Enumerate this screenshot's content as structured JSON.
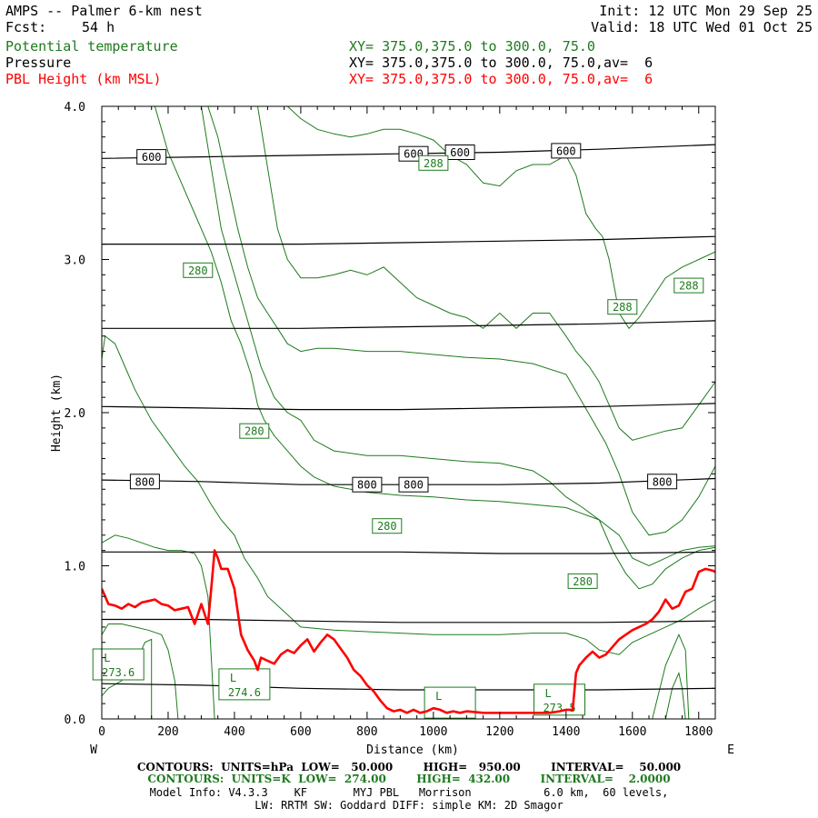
{
  "header": {
    "title": "AMPS -- Palmer 6-km nest",
    "forecast_label": "Fcst:",
    "forecast_hours": "54 h",
    "init": "Init: 12 UTC Mon 29 Sep 25",
    "valid": "Valid: 18 UTC Wed 01 Oct 25"
  },
  "fields": [
    {
      "name": "Potential temperature",
      "xy": "XY= 375.0,375.0 to 300.0, 75.0",
      "color": "#1e7a1e"
    },
    {
      "name": "Pressure",
      "xy": "XY= 375.0,375.0 to 300.0, 75.0,av=  6",
      "color": "#000000"
    },
    {
      "name": "PBL Height (km MSL)",
      "xy": "XY= 375.0,375.0 to 300.0, 75.0,av=  6",
      "color": "#ff0000"
    }
  ],
  "footer": {
    "pressure_contours": "CONTOURS:  UNITS=hPa  LOW=   50.000        HIGH=   950.00        INTERVAL=    50.000",
    "theta_contours": "CONTOURS:  UNITS=K  LOW=  274.00        HIGH=  432.00        INTERVAL=    2.0000",
    "model_info_1": "Model Info: V4.3.3    KF       MYJ PBL   Morrison           6.0 km,  60 levels,",
    "model_info_2": "LW: RRTM SW: Goddard DIFF: simple KM: 2D Smagor"
  },
  "chart_data": {
    "type": "line",
    "xlabel": "Distance (km)",
    "ylabel": "Height (km)",
    "xlim": [
      0,
      1850
    ],
    "ylim": [
      0,
      4
    ],
    "x_ticks": [
      "0",
      "200",
      "400",
      "600",
      "800",
      "1000",
      "1200",
      "1400",
      "1600",
      "1800"
    ],
    "y_ticks": [
      "0.0",
      "1.0",
      "2.0",
      "3.0",
      "4.0"
    ],
    "x_tick_values": [
      0,
      200,
      400,
      600,
      800,
      1000,
      1200,
      1400,
      1600,
      1800
    ],
    "y_tick_values": [
      0,
      1,
      2,
      3,
      4
    ],
    "left_end_label": "W",
    "right_end_label": "E",
    "pbl_height": {
      "name": "PBL Height (km MSL)",
      "color": "#ff0000",
      "x": [
        0,
        20,
        40,
        60,
        80,
        100,
        120,
        140,
        160,
        180,
        200,
        220,
        240,
        260,
        280,
        300,
        320,
        330,
        340,
        350,
        360,
        380,
        400,
        420,
        440,
        460,
        470,
        480,
        500,
        520,
        540,
        560,
        580,
        600,
        620,
        640,
        660,
        680,
        700,
        720,
        740,
        760,
        780,
        800,
        820,
        840,
        860,
        880,
        900,
        920,
        940,
        960,
        980,
        1000,
        1020,
        1040,
        1060,
        1080,
        1100,
        1150,
        1200,
        1250,
        1300,
        1350,
        1380,
        1400,
        1420,
        1430,
        1440,
        1460,
        1480,
        1500,
        1520,
        1540,
        1560,
        1580,
        1600,
        1620,
        1640,
        1660,
        1680,
        1700,
        1720,
        1740,
        1760,
        1780,
        1800,
        1820,
        1840,
        1850
      ],
      "y": [
        0.85,
        0.75,
        0.74,
        0.72,
        0.75,
        0.73,
        0.76,
        0.77,
        0.78,
        0.75,
        0.74,
        0.71,
        0.72,
        0.73,
        0.62,
        0.75,
        0.62,
        0.85,
        1.1,
        1.05,
        0.98,
        0.98,
        0.85,
        0.55,
        0.45,
        0.38,
        0.32,
        0.4,
        0.38,
        0.36,
        0.42,
        0.45,
        0.43,
        0.48,
        0.52,
        0.44,
        0.5,
        0.55,
        0.52,
        0.46,
        0.4,
        0.32,
        0.28,
        0.22,
        0.18,
        0.12,
        0.07,
        0.05,
        0.06,
        0.04,
        0.06,
        0.04,
        0.05,
        0.07,
        0.06,
        0.04,
        0.05,
        0.04,
        0.05,
        0.04,
        0.04,
        0.04,
        0.04,
        0.04,
        0.05,
        0.06,
        0.06,
        0.3,
        0.35,
        0.4,
        0.44,
        0.4,
        0.42,
        0.47,
        0.52,
        0.55,
        0.58,
        0.6,
        0.62,
        0.65,
        0.7,
        0.78,
        0.72,
        0.74,
        0.83,
        0.85,
        0.96,
        0.98,
        0.97,
        0.96
      ]
    },
    "pressure_contours": {
      "name": "Pressure",
      "units": "hPa",
      "color": "#000000",
      "lines": [
        {
          "level": "600",
          "x": [
            0,
            300,
            600,
            900,
            1200,
            1500,
            1850
          ],
          "y": [
            3.66,
            3.67,
            3.68,
            3.69,
            3.7,
            3.72,
            3.75
          ]
        },
        {
          "level": "650",
          "x": [
            0,
            300,
            600,
            900,
            1200,
            1500,
            1850
          ],
          "y": [
            3.1,
            3.1,
            3.1,
            3.11,
            3.12,
            3.13,
            3.15
          ]
        },
        {
          "level": "700",
          "x": [
            0,
            300,
            600,
            900,
            1200,
            1500,
            1850
          ],
          "y": [
            2.55,
            2.55,
            2.55,
            2.56,
            2.57,
            2.58,
            2.6
          ]
        },
        {
          "level": "750",
          "x": [
            0,
            300,
            600,
            900,
            1200,
            1500,
            1850
          ],
          "y": [
            2.04,
            2.03,
            2.02,
            2.02,
            2.03,
            2.04,
            2.06
          ]
        },
        {
          "level": "800",
          "x": [
            0,
            300,
            600,
            900,
            1200,
            1500,
            1850
          ],
          "y": [
            1.56,
            1.55,
            1.53,
            1.53,
            1.53,
            1.54,
            1.57
          ]
        },
        {
          "level": "850",
          "x": [
            0,
            300,
            600,
            900,
            1200,
            1500,
            1850
          ],
          "y": [
            1.09,
            1.09,
            1.09,
            1.09,
            1.08,
            1.08,
            1.09
          ]
        },
        {
          "level": "900",
          "x": [
            0,
            300,
            600,
            900,
            1200,
            1500,
            1850
          ],
          "y": [
            0.65,
            0.65,
            0.64,
            0.63,
            0.63,
            0.63,
            0.64
          ]
        },
        {
          "level": "950",
          "x": [
            0,
            300,
            600,
            900,
            1200,
            1500,
            1850
          ],
          "y": [
            0.23,
            0.22,
            0.2,
            0.19,
            0.19,
            0.19,
            0.2
          ]
        }
      ],
      "labels": [
        {
          "text": "600",
          "x": 150,
          "y": 3.67
        },
        {
          "text": "600",
          "x": 940,
          "y": 3.69
        },
        {
          "text": "600",
          "x": 1080,
          "y": 3.7
        },
        {
          "text": "600",
          "x": 1400,
          "y": 3.71
        },
        {
          "text": "800",
          "x": 130,
          "y": 1.55
        },
        {
          "text": "800",
          "x": 800,
          "y": 1.53
        },
        {
          "text": "800",
          "x": 940,
          "y": 1.53
        },
        {
          "text": "800",
          "x": 1690,
          "y": 1.55
        }
      ]
    },
    "theta_contours": {
      "name": "Potential temperature",
      "units": "K",
      "color": "#1e7a1e",
      "lines": [
        {
          "x": [
            160,
            200,
            240,
            280,
            330,
            360,
            390,
            420,
            450,
            470,
            490,
            520,
            560,
            600,
            640,
            700,
            800,
            900,
            1000,
            1100,
            1200,
            1300,
            1400,
            1500,
            1560,
            1600,
            1650,
            1700,
            1750,
            1800,
            1850
          ],
          "y": [
            4.0,
            3.7,
            3.5,
            3.3,
            3.05,
            2.85,
            2.6,
            2.45,
            2.25,
            2.05,
            1.95,
            1.85,
            1.75,
            1.65,
            1.58,
            1.52,
            1.48,
            1.46,
            1.45,
            1.43,
            1.42,
            1.4,
            1.38,
            1.3,
            1.2,
            1.05,
            1.0,
            1.05,
            1.1,
            1.12,
            1.13
          ]
        },
        {
          "x": [
            0,
            10,
            40,
            70,
            100,
            150,
            200,
            250,
            290,
            330,
            360,
            400,
            430,
            470,
            500,
            550,
            600,
            700,
            800,
            900,
            1000,
            1100,
            1200,
            1300,
            1400,
            1460,
            1500,
            1560,
            1600,
            1650,
            1700,
            1750,
            1800,
            1850
          ],
          "y": [
            2.35,
            2.5,
            2.45,
            2.3,
            2.15,
            1.95,
            1.8,
            1.65,
            1.55,
            1.4,
            1.3,
            1.2,
            1.05,
            0.92,
            0.8,
            0.7,
            0.6,
            0.58,
            0.57,
            0.56,
            0.55,
            0.55,
            0.55,
            0.56,
            0.56,
            0.52,
            0.45,
            0.42,
            0.5,
            0.55,
            0.6,
            0.65,
            0.72,
            0.78
          ]
        },
        {
          "x": [
            300,
            330,
            360,
            400,
            440,
            480,
            520,
            560,
            600,
            640,
            700,
            800,
            900,
            1000,
            1100,
            1200,
            1300,
            1350,
            1400,
            1450,
            1500,
            1540,
            1580,
            1620,
            1660,
            1700,
            1750,
            1800,
            1850
          ],
          "y": [
            4.0,
            3.6,
            3.2,
            2.9,
            2.6,
            2.3,
            2.1,
            2.0,
            1.95,
            1.82,
            1.75,
            1.72,
            1.72,
            1.7,
            1.68,
            1.67,
            1.62,
            1.55,
            1.45,
            1.38,
            1.3,
            1.1,
            0.95,
            0.85,
            0.88,
            0.98,
            1.05,
            1.1,
            1.12
          ]
        },
        {
          "x": [
            320,
            350,
            380,
            410,
            440,
            470,
            500,
            530,
            560,
            600,
            650,
            700,
            800,
            900,
            1000,
            1100,
            1200,
            1300,
            1400,
            1440,
            1480,
            1520,
            1560,
            1600,
            1650,
            1700,
            1750,
            1800,
            1850
          ],
          "y": [
            4.0,
            3.8,
            3.5,
            3.2,
            2.95,
            2.75,
            2.65,
            2.55,
            2.45,
            2.4,
            2.42,
            2.42,
            2.4,
            2.4,
            2.38,
            2.36,
            2.35,
            2.32,
            2.25,
            2.1,
            1.95,
            1.8,
            1.6,
            1.35,
            1.2,
            1.22,
            1.3,
            1.45,
            1.65
          ]
        },
        {
          "x": [
            470,
            500,
            530,
            560,
            600,
            650,
            700,
            750,
            800,
            850,
            900,
            950,
            1000,
            1050,
            1100,
            1150,
            1200,
            1250,
            1300,
            1350,
            1400,
            1430,
            1470,
            1500,
            1530,
            1560,
            1600,
            1650,
            1700,
            1750,
            1800,
            1850
          ],
          "y": [
            4.0,
            3.6,
            3.2,
            3.0,
            2.88,
            2.88,
            2.9,
            2.93,
            2.9,
            2.95,
            2.85,
            2.75,
            2.7,
            2.65,
            2.62,
            2.55,
            2.65,
            2.55,
            2.65,
            2.65,
            2.5,
            2.4,
            2.3,
            2.2,
            2.05,
            1.9,
            1.82,
            1.85,
            1.88,
            1.9,
            2.05,
            2.2
          ]
        },
        {
          "x": [
            560,
            600,
            650,
            700,
            750,
            800,
            850,
            900,
            950,
            1000,
            1050,
            1100,
            1150,
            1200,
            1250,
            1300,
            1350,
            1400,
            1430,
            1460,
            1490,
            1510,
            1530,
            1560,
            1590,
            1620,
            1660,
            1700,
            1750,
            1800,
            1850
          ],
          "y": [
            4.0,
            3.92,
            3.85,
            3.82,
            3.8,
            3.82,
            3.85,
            3.85,
            3.82,
            3.78,
            3.68,
            3.62,
            3.5,
            3.48,
            3.58,
            3.62,
            3.62,
            3.68,
            3.55,
            3.3,
            3.2,
            3.15,
            3.0,
            2.65,
            2.55,
            2.62,
            2.75,
            2.88,
            2.95,
            3.0,
            3.05
          ]
        },
        {
          "x": [
            0,
            20,
            60,
            100,
            140,
            180,
            200,
            220,
            230
          ],
          "y": [
            0.55,
            0.62,
            0.62,
            0.6,
            0.58,
            0.55,
            0.45,
            0.25,
            0.0
          ]
        },
        {
          "x": [
            0,
            20,
            60,
            100,
            130,
            150,
            150
          ],
          "y": [
            0.15,
            0.2,
            0.25,
            0.35,
            0.5,
            0.52,
            0.0
          ]
        },
        {
          "x": [
            0,
            40,
            80,
            120,
            160,
            200,
            240,
            280,
            300,
            320,
            340
          ],
          "y": [
            1.15,
            1.2,
            1.18,
            1.15,
            1.12,
            1.1,
            1.1,
            1.08,
            1.0,
            0.8,
            0.0
          ]
        },
        {
          "x": [
            1660,
            1700,
            1740,
            1760,
            1770
          ],
          "y": [
            0.0,
            0.35,
            0.55,
            0.45,
            0.0
          ]
        },
        {
          "x": [
            1700,
            1720,
            1740,
            1750,
            1760
          ],
          "y": [
            0.0,
            0.2,
            0.3,
            0.2,
            0.0
          ]
        }
      ],
      "labels": [
        {
          "text": "280",
          "x": 290,
          "y": 2.93
        },
        {
          "text": "280",
          "x": 460,
          "y": 1.88
        },
        {
          "text": "280",
          "x": 860,
          "y": 1.26
        },
        {
          "text": "280",
          "x": 1450,
          "y": 0.9
        },
        {
          "text": "288",
          "x": 1000,
          "y": 3.63
        },
        {
          "text": "288",
          "x": 1570,
          "y": 2.69
        },
        {
          "text": "288",
          "x": 1770,
          "y": 2.83
        }
      ],
      "lows": [
        {
          "text": "L",
          "value": "273.6",
          "x": 50,
          "y": 0.35
        },
        {
          "text": "L",
          "value": "274.6",
          "x": 430,
          "y": 0.22
        },
        {
          "text": "L",
          "value": "",
          "x": 1050,
          "y": 0.1
        },
        {
          "text": "L",
          "value": "273.5",
          "x": 1380,
          "y": 0.12
        }
      ]
    }
  }
}
